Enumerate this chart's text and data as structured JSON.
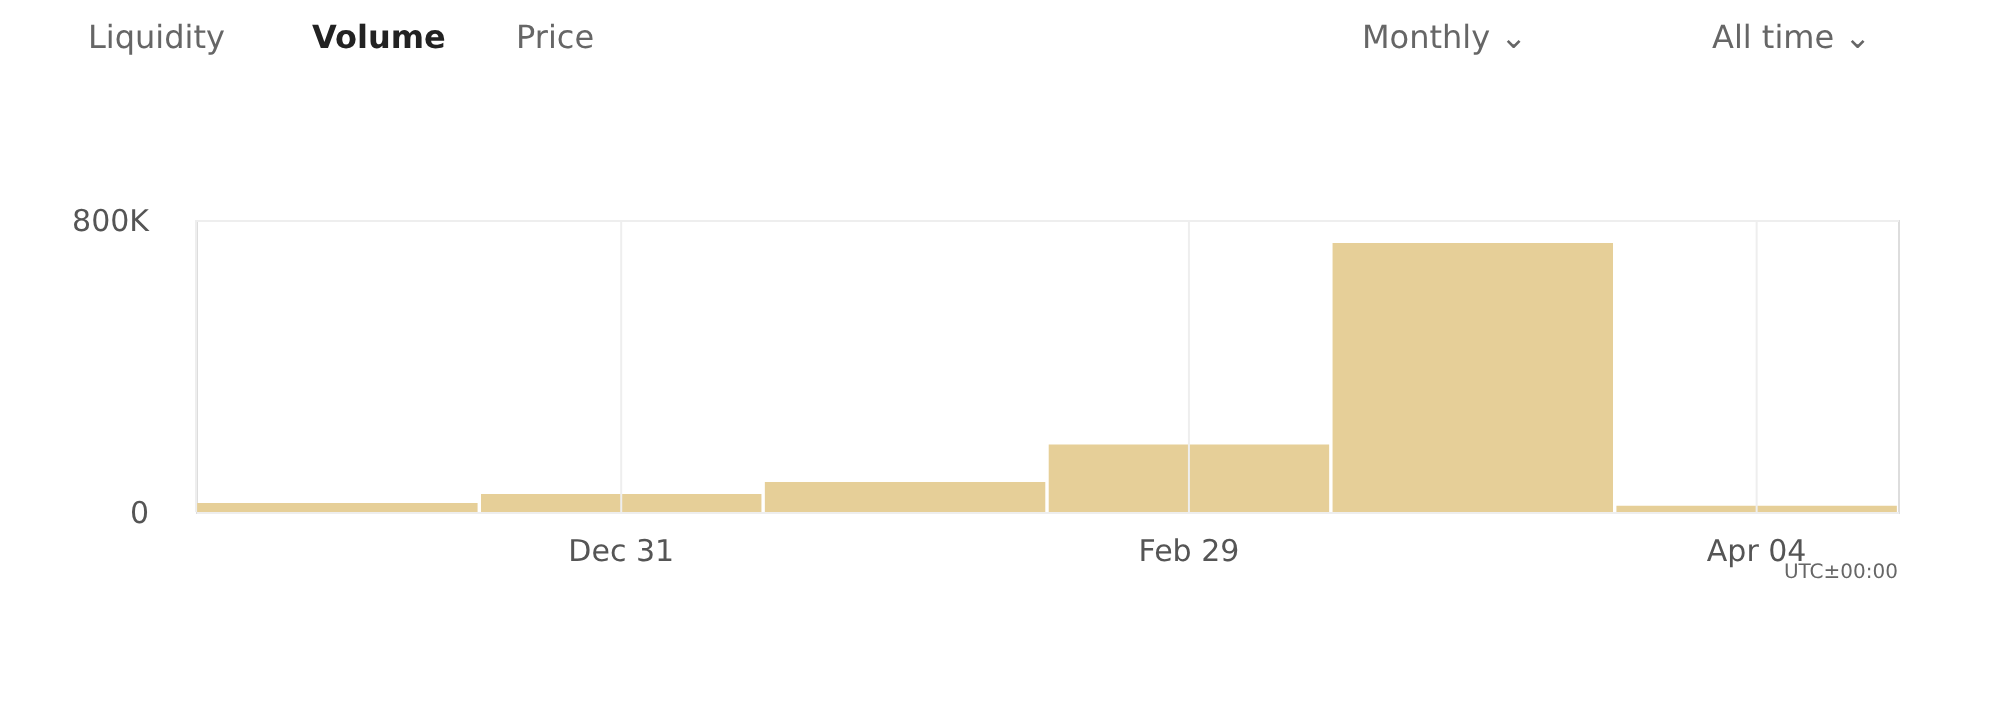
{
  "chart_data": {
    "type": "bar",
    "categories": [
      null,
      "Dec 31",
      null,
      "Feb 29",
      null,
      "Apr 04"
    ],
    "values": [
      25000,
      49000,
      82000,
      185000,
      737000,
      17000
    ],
    "color": "#e6cf98",
    "ylim": [
      0,
      800000
    ],
    "yticks": [
      0,
      {
        "value": 800000,
        "label": "800K"
      }
    ],
    "grid": true,
    "annotations": [
      "Liquidity",
      "Volume",
      "Price",
      "Monthly ⌄",
      "All time ⌄",
      "UTC±00:00"
    ]
  }
}
